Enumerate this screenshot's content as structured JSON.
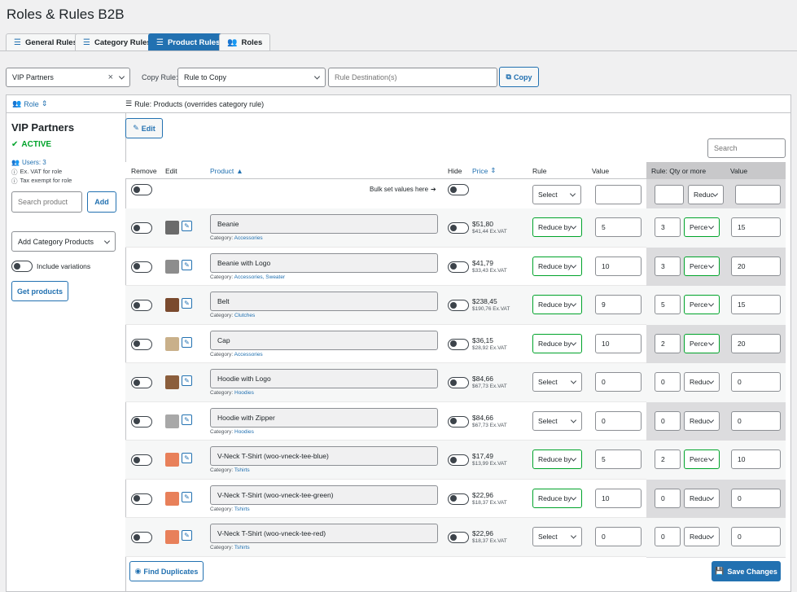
{
  "page": {
    "title": "Roles & Rules B2B"
  },
  "tabs": [
    {
      "label": "General Rules",
      "icon": "sliders-icon",
      "active": false
    },
    {
      "label": "Category Rules",
      "icon": "sliders-icon",
      "active": false
    },
    {
      "label": "Product Rules",
      "icon": "sliders-icon",
      "active": true
    },
    {
      "label": "Roles",
      "icon": "users-icon",
      "active": false
    }
  ],
  "topbar": {
    "role_select": "VIP Partners",
    "clear_symbol": "×",
    "copy_rule_label": "Copy Rule:",
    "copy_rule_select": "Rule to Copy",
    "rule_destination_placeholder": "Rule Destination(s)",
    "copy_button": "Copy"
  },
  "panel_header": {
    "role_link": "Role",
    "rule_title": "Rule: Products (overrides category rule)"
  },
  "sidebar": {
    "role_name": "VIP Partners",
    "status": "ACTIVE",
    "users": "Users: 3",
    "info": [
      "Ex. VAT for role",
      "Tax exempt for role"
    ],
    "search_placeholder": "Search product",
    "add_button": "Add",
    "category_select": "Add Category Products",
    "include_variations": "Include variations",
    "get_products_button": "Get products"
  },
  "main": {
    "edit_button": "Edit",
    "search_placeholder": "Search",
    "bulk_label": "Bulk set values here",
    "bulk_rule_select": "Select",
    "bulk_qty_select": "Reduc",
    "find_duplicates_button": "Find Duplicates",
    "save_button": "Save Changes"
  },
  "columns": {
    "remove": "Remove",
    "edit": "Edit",
    "product": "Product",
    "hide": "Hide",
    "price": "Price",
    "rule": "Rule",
    "value": "Value",
    "qty_rule": "Rule: Qty or more",
    "qty_value": "Value"
  },
  "category_prefix": "Category:",
  "products": [
    {
      "name": "Beanie",
      "category": "Accessories",
      "price": "$51,80",
      "price_ex": "$41,44 Ex.VAT",
      "rule": "Reduce by",
      "rule_active": true,
      "value": "5",
      "qty": "3",
      "qty_rule": "Perce",
      "qty_rule_active": true,
      "qty_value": "15",
      "thumb_color": "#6b6b6b"
    },
    {
      "name": "Beanie with Logo",
      "category": "Accessories, Sweater",
      "price": "$41,79",
      "price_ex": "$33,43 Ex.VAT",
      "rule": "Reduce by",
      "rule_active": true,
      "value": "10",
      "qty": "3",
      "qty_rule": "Perce",
      "qty_rule_active": true,
      "qty_value": "20",
      "thumb_color": "#8d8d8d"
    },
    {
      "name": "Belt",
      "category": "Clutches",
      "price": "$238,45",
      "price_ex": "$190,76 Ex.VAT",
      "rule": "Reduce by",
      "rule_active": true,
      "value": "9",
      "qty": "5",
      "qty_rule": "Perce",
      "qty_rule_active": true,
      "qty_value": "15",
      "thumb_color": "#7a4a2e"
    },
    {
      "name": "Cap",
      "category": "Accessories",
      "price": "$36,15",
      "price_ex": "$28,92 Ex.VAT",
      "rule": "Reduce by",
      "rule_active": true,
      "value": "10",
      "qty": "2",
      "qty_rule": "Perce",
      "qty_rule_active": true,
      "qty_value": "20",
      "thumb_color": "#c9b08a"
    },
    {
      "name": "Hoodie with Logo",
      "category": "Hoodies",
      "price": "$84,66",
      "price_ex": "$67,73 Ex.VAT",
      "rule": "Select",
      "rule_active": false,
      "value": "0",
      "qty": "0",
      "qty_rule": "Reduc",
      "qty_rule_active": false,
      "qty_value": "0",
      "thumb_color": "#8b5e3c"
    },
    {
      "name": "Hoodie with Zipper",
      "category": "Hoodies",
      "price": "$84,66",
      "price_ex": "$67,73 Ex.VAT",
      "rule": "Select",
      "rule_active": false,
      "value": "0",
      "qty": "0",
      "qty_rule": "Reduc",
      "qty_rule_active": false,
      "qty_value": "0",
      "thumb_color": "#a8a8a8"
    },
    {
      "name": "V-Neck T-Shirt (woo-vneck-tee-blue)",
      "category": "Tshirts",
      "price": "$17,49",
      "price_ex": "$13,99 Ex.VAT",
      "rule": "Reduce by",
      "rule_active": true,
      "value": "5",
      "qty": "2",
      "qty_rule": "Perce",
      "qty_rule_active": true,
      "qty_value": "10",
      "thumb_color": "#e8805a"
    },
    {
      "name": "V-Neck T-Shirt (woo-vneck-tee-green)",
      "category": "Tshirts",
      "price": "$22,96",
      "price_ex": "$18,37 Ex.VAT",
      "rule": "Reduce by",
      "rule_active": true,
      "value": "10",
      "qty": "0",
      "qty_rule": "Reduc",
      "qty_rule_active": false,
      "qty_value": "0",
      "thumb_color": "#e8805a"
    },
    {
      "name": "V-Neck T-Shirt (woo-vneck-tee-red)",
      "category": "Tshirts",
      "price": "$22,96",
      "price_ex": "$18,37 Ex.VAT",
      "rule": "Select",
      "rule_active": false,
      "value": "0",
      "qty": "0",
      "qty_rule": "Reduc",
      "qty_rule_active": false,
      "qty_value": "0",
      "thumb_color": "#e8805a"
    }
  ],
  "colors": {
    "accent": "#2271b1",
    "active_green": "#00a32a",
    "page_bg": "#f0f0f1"
  }
}
